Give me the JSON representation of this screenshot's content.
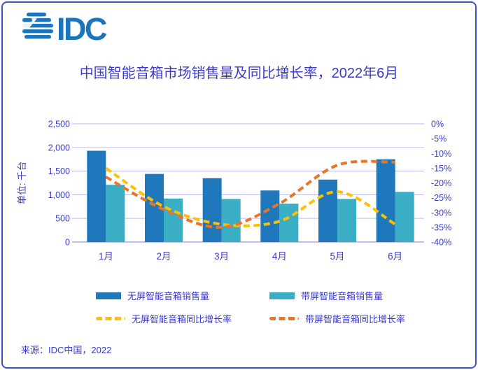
{
  "logo": {
    "text": "IDC"
  },
  "colors": {
    "accent_text": "#3A3AD0",
    "grid": "#C6C6F0",
    "axis_line": "#9A9ADF",
    "border": "#3E52C5",
    "logo": "#1C74BB",
    "bar_dark": "#1F78BB",
    "bar_light": "#39AEC4",
    "line_yellow": "#FFC000",
    "line_orange": "#EE7425"
  },
  "chart_data": {
    "type": "combo (bar + smoothed dashed line)",
    "title": "中国智能音箱市场销售量及同比增长率，2022年6月",
    "categories": [
      "1月",
      "2月",
      "3月",
      "4月",
      "5月",
      "6月"
    ],
    "bar_series": [
      {
        "name": "无屏智能音箱销售量",
        "color": "#1F78BB",
        "axis": "left",
        "values": [
          1930,
          1440,
          1350,
          1090,
          1320,
          1750
        ]
      },
      {
        "name": "带屏智能音箱销售量",
        "color": "#39AEC4",
        "axis": "left",
        "values": [
          1210,
          920,
          910,
          810,
          910,
          1060
        ]
      }
    ],
    "line_series": [
      {
        "name": "无屏智能音箱同比增长率",
        "color": "#FFC000",
        "axis": "right",
        "dashed": true,
        "values": [
          -15,
          -28,
          -34,
          -33,
          -23,
          -34
        ]
      },
      {
        "name": "带屏智能音箱同比增长率",
        "color": "#EE7425",
        "axis": "right",
        "dashed": true,
        "values": [
          -18,
          -29,
          -35,
          -27,
          -14,
          -13
        ]
      }
    ],
    "left_axis": {
      "label": "单位: 千台",
      "min": 0,
      "max": 2500,
      "step": 500,
      "ticks": [
        "0",
        "500",
        "1,000",
        "1,500",
        "2,000",
        "2,500"
      ]
    },
    "right_axis": {
      "min": -40,
      "max": 0,
      "step": -5,
      "ticks": [
        "0%",
        "-5%",
        "-10%",
        "-15%",
        "-20%",
        "-25%",
        "-30%",
        "-35%",
        "-40%"
      ]
    },
    "grid": true,
    "legend_position": "bottom"
  },
  "legend": {
    "items": [
      {
        "swatch": "bar",
        "color": "#1F78BB",
        "label": "无屏智能音箱销售量"
      },
      {
        "swatch": "bar",
        "color": "#39AEC4",
        "label": "带屏智能音箱销售量"
      },
      {
        "swatch": "line",
        "color": "#FFC000",
        "label": "无屏智能音箱同比增长率"
      },
      {
        "swatch": "line",
        "color": "#EE7425",
        "label": "带屏智能音箱同比增长率"
      }
    ]
  },
  "source": {
    "text": "来源：IDC中国，2022"
  }
}
